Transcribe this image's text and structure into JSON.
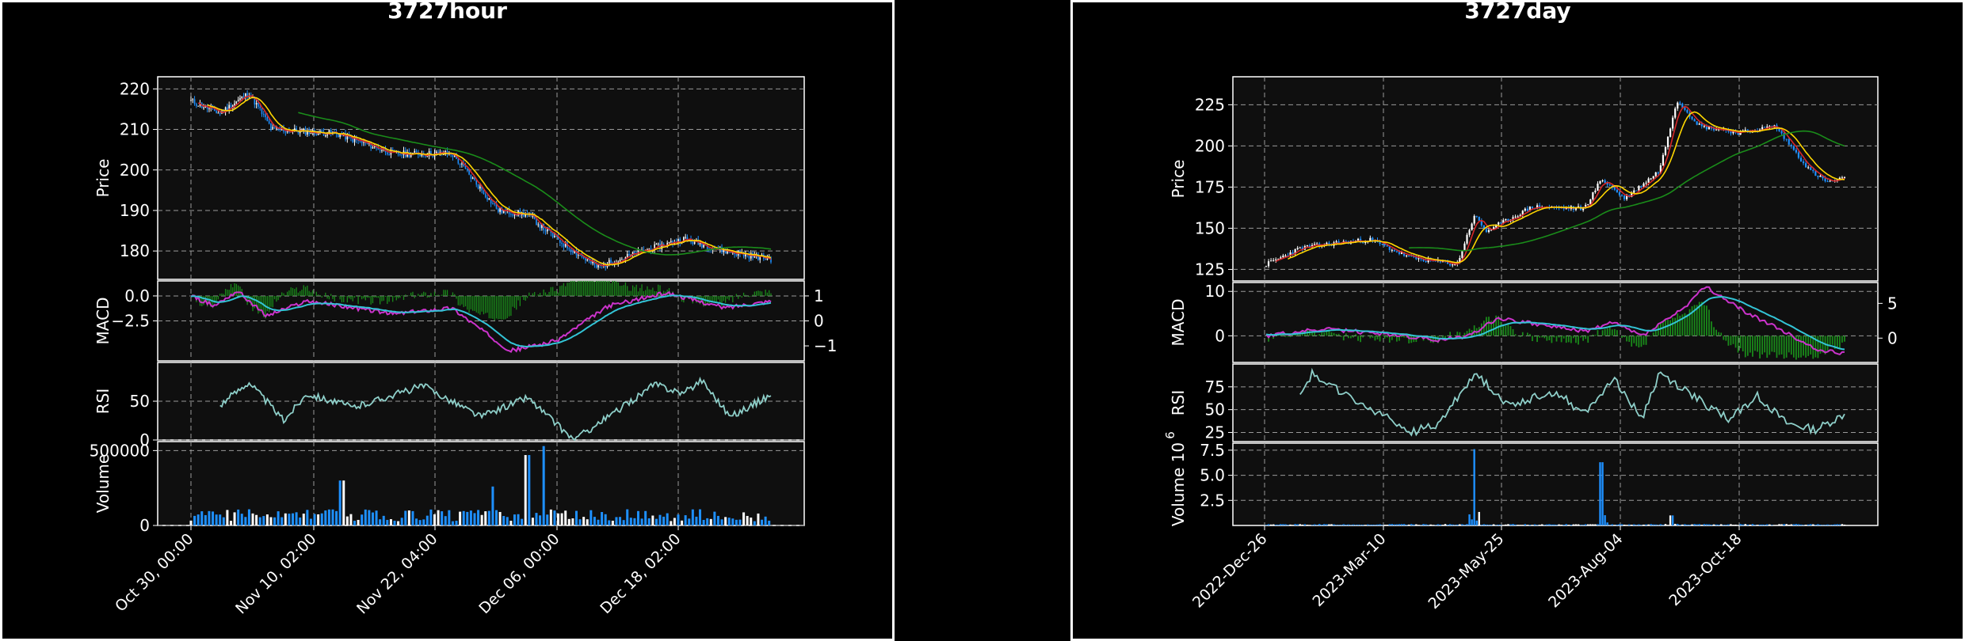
{
  "charts": {
    "hour": {
      "title": "3727hour",
      "ylabels": {
        "price": "Price",
        "macd": "MACD",
        "rsi": "RSI",
        "volume": "Volume"
      },
      "price_ticks": [
        "220",
        "210",
        "200",
        "190",
        "180"
      ],
      "macd_ticks_left": [
        "0.0",
        "−2.5"
      ],
      "macd_ticks_right": [
        "1",
        "0",
        "−1"
      ],
      "rsi_ticks": [
        "50",
        "0"
      ],
      "volume_ticks": [
        "500000",
        "0"
      ],
      "x_ticks": [
        "Oct 30, 00:00",
        "Nov 10, 02:00",
        "Nov 22, 04:00",
        "Dec 06, 00:00",
        "Dec 18, 02:00"
      ]
    },
    "day": {
      "title": "3727day",
      "ylabels": {
        "price": "Price",
        "macd": "MACD",
        "rsi": "RSI",
        "volume": "Volume  10"
      },
      "volume_exponent": "6",
      "price_ticks": [
        "225",
        "200",
        "175",
        "150",
        "125"
      ],
      "macd_ticks_left": [
        "10",
        "0"
      ],
      "macd_ticks_right": [
        "5",
        "0"
      ],
      "rsi_ticks": [
        "75",
        "50",
        "25"
      ],
      "volume_ticks": [
        "7.5",
        "5.0",
        "2.5"
      ],
      "x_ticks": [
        "2022-Dec-26",
        "2023-Mar-10",
        "2023-May-25",
        "2023-Aug-04",
        "2023-Oct-18"
      ]
    }
  },
  "colors": {
    "background": "#000000",
    "panel": "#0f0f0f",
    "up": "#ffffff",
    "down": "#1e90ff",
    "ma_fast": "#d62728",
    "ma_mid": "#ffd700",
    "ma_slow": "#1a8c1a",
    "macd_line": "#cc33cc",
    "signal_line": "#33c4d6",
    "histogram": "#1a8c1a",
    "rsi": "#8ecfc9"
  },
  "chart_data": [
    {
      "type": "line",
      "name": "3727hour",
      "title": "3727hour",
      "price_keypoints": [
        [
          0,
          217
        ],
        [
          0.05,
          214
        ],
        [
          0.1,
          219
        ],
        [
          0.14,
          210
        ],
        [
          0.25,
          209
        ],
        [
          0.35,
          204
        ],
        [
          0.45,
          204
        ],
        [
          0.53,
          190
        ],
        [
          0.58,
          189
        ],
        [
          0.63,
          183
        ],
        [
          0.7,
          176
        ],
        [
          0.78,
          180
        ],
        [
          0.85,
          183
        ],
        [
          0.92,
          180
        ],
        [
          1,
          178
        ]
      ],
      "price_ylim": [
        173,
        223
      ],
      "macd_keypoints": [
        [
          0,
          0
        ],
        [
          0.04,
          -1
        ],
        [
          0.08,
          0.5
        ],
        [
          0.13,
          -2
        ],
        [
          0.2,
          -0.5
        ],
        [
          0.35,
          -1.8
        ],
        [
          0.45,
          -1.2
        ],
        [
          0.55,
          -5.5
        ],
        [
          0.63,
          -4.5
        ],
        [
          0.72,
          -1
        ],
        [
          0.82,
          0.3
        ],
        [
          0.92,
          -1.2
        ],
        [
          1,
          -0.5
        ]
      ],
      "macd_ylim": [
        -6.5,
        1.5
      ],
      "rsi_keypoints": [
        [
          0.05,
          45
        ],
        [
          0.1,
          75
        ],
        [
          0.16,
          25
        ],
        [
          0.2,
          60
        ],
        [
          0.28,
          42
        ],
        [
          0.4,
          70
        ],
        [
          0.5,
          30
        ],
        [
          0.58,
          55
        ],
        [
          0.66,
          0
        ],
        [
          0.73,
          35
        ],
        [
          0.8,
          72
        ],
        [
          0.85,
          60
        ],
        [
          0.88,
          78
        ],
        [
          0.93,
          30
        ],
        [
          1,
          58
        ]
      ],
      "rsi_ylim": [
        0,
        100
      ],
      "volume_spikes": [
        [
          0.26,
          300000
        ],
        [
          0.52,
          260000
        ],
        [
          0.58,
          470000
        ],
        [
          0.61,
          530000
        ]
      ],
      "volume_ylim": [
        0,
        560000
      ],
      "x_ticks": [
        "Oct 30, 00:00",
        "Nov 10, 02:00",
        "Nov 22, 04:00",
        "Dec 06, 00:00",
        "Dec 18, 02:00"
      ]
    },
    {
      "type": "line",
      "name": "3727day",
      "title": "3727day",
      "price_keypoints": [
        [
          0,
          128
        ],
        [
          0.06,
          138
        ],
        [
          0.12,
          141
        ],
        [
          0.18,
          143
        ],
        [
          0.25,
          132
        ],
        [
          0.33,
          128
        ],
        [
          0.36,
          158
        ],
        [
          0.38,
          148
        ],
        [
          0.46,
          163
        ],
        [
          0.55,
          162
        ],
        [
          0.58,
          180
        ],
        [
          0.62,
          168
        ],
        [
          0.68,
          185
        ],
        [
          0.71,
          228
        ],
        [
          0.75,
          212
        ],
        [
          0.82,
          208
        ],
        [
          0.88,
          212
        ],
        [
          0.94,
          185
        ],
        [
          0.97,
          178
        ],
        [
          1,
          180
        ]
      ],
      "price_ylim": [
        118,
        242
      ],
      "macd_keypoints": [
        [
          0,
          0
        ],
        [
          0.1,
          1.5
        ],
        [
          0.2,
          0.5
        ],
        [
          0.3,
          -1
        ],
        [
          0.35,
          0
        ],
        [
          0.4,
          4
        ],
        [
          0.5,
          2
        ],
        [
          0.55,
          1
        ],
        [
          0.6,
          3
        ],
        [
          0.65,
          0
        ],
        [
          0.72,
          6
        ],
        [
          0.76,
          11
        ],
        [
          0.82,
          6
        ],
        [
          0.88,
          2
        ],
        [
          0.95,
          -3
        ],
        [
          1,
          -4
        ]
      ],
      "macd_ylim": [
        -6,
        12
      ],
      "rsi_keypoints": [
        [
          0.06,
          70
        ],
        [
          0.08,
          90
        ],
        [
          0.15,
          60
        ],
        [
          0.2,
          45
        ],
        [
          0.25,
          25
        ],
        [
          0.3,
          35
        ],
        [
          0.36,
          90
        ],
        [
          0.42,
          55
        ],
        [
          0.5,
          70
        ],
        [
          0.55,
          45
        ],
        [
          0.6,
          85
        ],
        [
          0.65,
          40
        ],
        [
          0.68,
          90
        ],
        [
          0.75,
          60
        ],
        [
          0.8,
          40
        ],
        [
          0.85,
          65
        ],
        [
          0.9,
          35
        ],
        [
          0.95,
          28
        ],
        [
          1,
          45
        ]
      ],
      "rsi_ylim": [
        15,
        100
      ],
      "volume_spikes": [
        [
          0.36,
          7.6
        ],
        [
          0.58,
          6.3
        ],
        [
          0.7,
          1.0
        ]
      ],
      "volume_ylim": [
        0,
        8.2
      ],
      "x_ticks": [
        "2022-Dec-26",
        "2023-Mar-10",
        "2023-May-25",
        "2023-Aug-04",
        "2023-Oct-18"
      ]
    }
  ]
}
